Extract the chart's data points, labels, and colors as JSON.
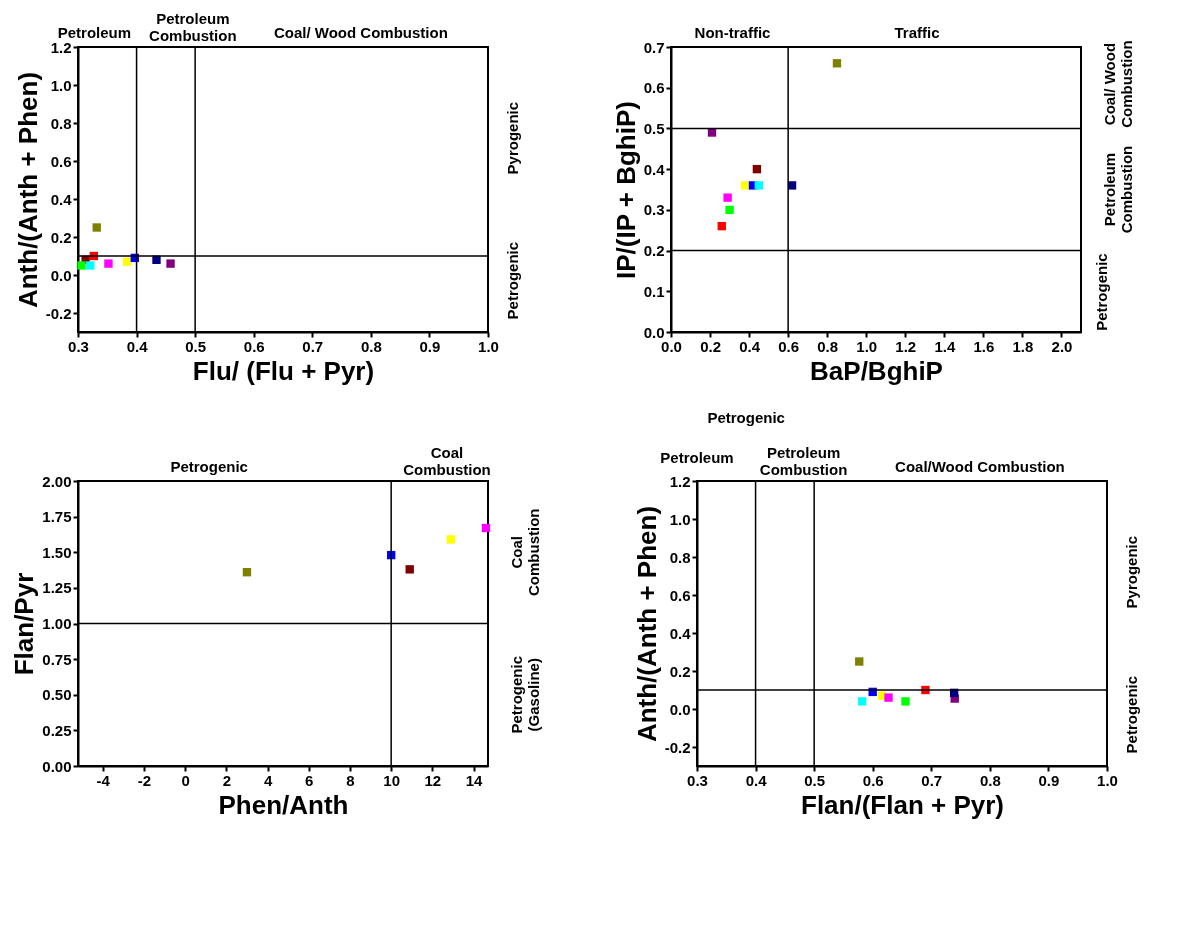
{
  "chart_data": [
    {
      "type": "scatter",
      "xlabel": "Flu/ (Flu + Pyr)",
      "ylabel": "Anth/(Anth + Phen)",
      "marker": "square",
      "grid": false,
      "x": [
        0.332,
        0.313,
        0.327,
        0.306,
        0.321,
        0.352,
        0.384,
        0.397,
        0.434,
        0.458
      ],
      "values": [
        0.25,
        0.08,
        0.1,
        0.05,
        0.05,
        0.06,
        0.07,
        0.09,
        0.08,
        0.06
      ],
      "colors": [
        "#808000",
        "#800000",
        "#ff0000",
        "#00ff00",
        "#00ffff",
        "#ff00ff",
        "#ffff00",
        "#0000ff",
        "#000080",
        "#800080"
      ],
      "xlim": [
        0.3,
        1.0
      ],
      "xticks": [
        0.3,
        0.4,
        0.5,
        0.6,
        0.7,
        0.8,
        0.9,
        {
          "value": 1.0,
          "label": "1.0"
        }
      ],
      "ylim": [
        -0.3,
        1.2
      ],
      "yticks": [
        -0.2,
        {
          "value": 0,
          "label": "0.0"
        },
        0.2,
        0.4,
        0.6,
        0.8,
        {
          "value": 1.0,
          "label": "1.0"
        },
        1.2
      ],
      "ref_lines": [
        {
          "axis": "x",
          "value": 0.4
        },
        {
          "axis": "x",
          "value": 0.5
        },
        {
          "axis": "y",
          "value": 0.1
        }
      ],
      "annotations": [
        "Petroleum",
        "Petroleum\nCombustion",
        "Coal/ Wood Combustion",
        "Pyrogenic",
        "Petrogenic"
      ]
    },
    {
      "type": "scatter",
      "xlabel": "BaP/BghiP",
      "ylabel": "IP/(IP + BghiP)",
      "marker": "square",
      "grid": false,
      "x": [
        0.85,
        0.21,
        0.44,
        0.38,
        0.42,
        0.45,
        0.62,
        0.29,
        0.3,
        0.26
      ],
      "values": [
        0.66,
        0.49,
        0.4,
        0.36,
        0.36,
        0.36,
        0.36,
        0.33,
        0.3,
        0.26
      ],
      "colors": [
        "#808000",
        "#800080",
        "#800000",
        "#ffff00",
        "#0000ff",
        "#00ffff",
        "#000080",
        "#ff00ff",
        "#00ff00",
        "#ff0000"
      ],
      "xlim": [
        0,
        2.1
      ],
      "xticks": [
        {
          "value": 0,
          "label": "0.0"
        },
        0.2,
        0.4,
        0.6,
        0.8,
        {
          "value": 1.0,
          "label": "1.0"
        },
        1.2,
        1.4,
        1.6,
        1.8,
        {
          "value": 2.0,
          "label": "2.0"
        }
      ],
      "ylim": [
        0,
        0.7
      ],
      "yticks": [
        {
          "value": 0,
          "label": "0.0"
        },
        0.1,
        0.2,
        0.3,
        0.4,
        0.5,
        0.6,
        0.7
      ],
      "ref_lines": [
        {
          "axis": "x",
          "value": 0.6
        },
        {
          "axis": "y",
          "value": 0.5
        },
        {
          "axis": "y",
          "value": 0.2
        }
      ],
      "annotations": [
        "Non-traffic",
        "Traffic",
        "Coal/ Wood\nCombustion",
        "Petroleum\nCombustion",
        "Petrogenic"
      ]
    },
    {
      "type": "scatter",
      "xlabel": "Phen/Anth",
      "ylabel": "Flan/Pyr",
      "marker": "square",
      "grid": false,
      "x": [
        3.0,
        10.0,
        10.9,
        12.9,
        14.6
      ],
      "values": [
        1.36,
        1.48,
        1.38,
        1.59,
        1.67
      ],
      "colors": [
        "#808000",
        "#0000ff",
        "#800000",
        "#ffff00",
        "#ff00ff"
      ],
      "xlim": [
        -5.2,
        14.7
      ],
      "xticks": [
        -4,
        -2,
        0,
        2,
        4,
        6,
        8,
        10,
        12,
        14
      ],
      "ylim": [
        0,
        2
      ],
      "yticks": [
        {
          "value": 0,
          "label": "0.00"
        },
        0.25,
        {
          "value": 0.5,
          "label": "0.50"
        },
        0.75,
        {
          "value": 1,
          "label": "1.00"
        },
        1.25,
        {
          "value": 1.5,
          "label": "1.50"
        },
        1.75,
        {
          "value": 2,
          "label": "2.00"
        }
      ],
      "ref_lines": [
        {
          "axis": "x",
          "value": 10
        },
        {
          "axis": "y",
          "value": 1.0
        }
      ],
      "annotations": [
        "Petrogenic",
        "Coal\nCombustion",
        "Coal\nCombustion",
        "Petrogenic\n(Gasoline)"
      ]
    },
    {
      "type": "scatter",
      "xlabel": "Flan/(Flan + Pyr)",
      "ylabel": "Anth/(Anth + Phen)",
      "marker": "square",
      "grid": false,
      "x": [
        0.577,
        0.6,
        0.582,
        0.616,
        0.627,
        0.656,
        0.69,
        0.74,
        0.739
      ],
      "values": [
        0.25,
        0.09,
        0.04,
        0.07,
        0.06,
        0.04,
        0.1,
        0.055,
        0.085
      ],
      "colors": [
        "#808000",
        "#0000ff",
        "#00ffff",
        "#ffff00",
        "#ff00ff",
        "#00ff00",
        "#ff0000",
        "#800080",
        "#000080"
      ],
      "xlim": [
        0.3,
        1.0
      ],
      "xticks": [
        0.3,
        0.4,
        0.5,
        0.6,
        0.7,
        0.8,
        0.9,
        {
          "value": 1.0,
          "label": "1.0"
        }
      ],
      "ylim": [
        -0.3,
        1.2
      ],
      "yticks": [
        -0.2,
        {
          "value": 0,
          "label": "0.0"
        },
        0.2,
        0.4,
        0.6,
        0.8,
        {
          "value": 1.0,
          "label": "1.0"
        },
        1.2
      ],
      "ref_lines": [
        {
          "axis": "x",
          "value": 0.4
        },
        {
          "axis": "x",
          "value": 0.5
        },
        {
          "axis": "y",
          "value": 0.1
        }
      ],
      "annotations": [
        "Petrogenic",
        "Petroleum",
        "Petroleum\nCombustion",
        "Coal/Wood Combustion",
        "Pyrogenic",
        "Petrogenic"
      ]
    }
  ]
}
